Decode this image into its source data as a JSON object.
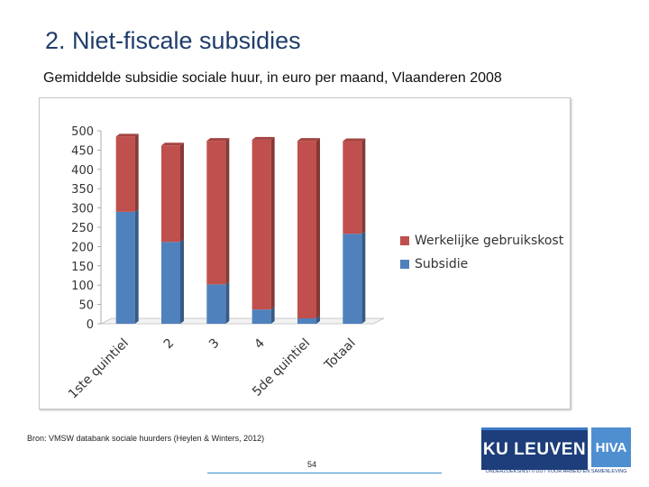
{
  "page": {
    "title": "2. Niet-fiscale subsidies",
    "subtitle": "Gemiddelde subsidie sociale huur, in euro per maand, Vlaanderen 2008",
    "source": "Bron: VMSW databank sociale huurders (Heylen & Winters, 2012)",
    "page_number": "54"
  },
  "logos": {
    "ku_leuven": "KU LEUVEN",
    "hiva": "HIVA",
    "tagline": "ONDERZOEKSINSTITUUT VOOR ARBEID EN SAMENLEVING"
  },
  "chart_data": {
    "type": "bar",
    "stacked": true,
    "title": "",
    "xlabel": "",
    "ylabel": "",
    "ylim": [
      0,
      500
    ],
    "yticks": [
      0,
      50,
      100,
      150,
      200,
      250,
      300,
      350,
      400,
      450,
      500
    ],
    "categories": [
      "1ste quintiel",
      "2",
      "3",
      "4",
      "5de quintiel",
      "Totaal"
    ],
    "series": [
      {
        "name": "Subsidie",
        "color": "#4f81bd",
        "values": [
          290,
          212,
          102,
          37,
          14,
          233
        ]
      },
      {
        "name": "Werkelijke gebruikskost",
        "color": "#c0504d",
        "values": [
          195,
          250,
          372,
          440,
          460,
          240
        ]
      }
    ],
    "legend": {
      "placement": "right",
      "order": [
        "Werkelijke gebruikskost",
        "Subsidie"
      ]
    },
    "grid": false
  }
}
